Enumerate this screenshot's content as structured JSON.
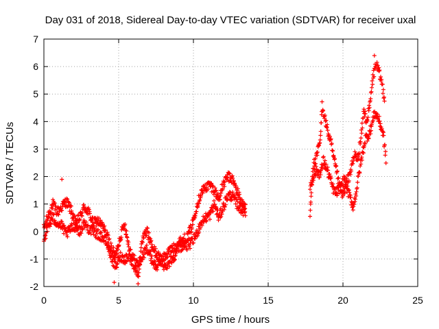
{
  "chart_data": {
    "type": "scatter",
    "title": "Day 031 of 2018, Sidereal Day-to-day VTEC variation (SDTVAR) for receiver uxal",
    "xlabel": "GPS time / hours",
    "ylabel": "SDTVAR / TECUs",
    "xlim": [
      0,
      25
    ],
    "ylim": [
      -2,
      7
    ],
    "x_ticks": [
      "0",
      "5",
      "10",
      "15",
      "20",
      "25"
    ],
    "y_ticks": [
      "-2",
      "-1",
      "0",
      "1",
      "2",
      "3",
      "4",
      "5",
      "6",
      "7"
    ],
    "grid": true,
    "marker": "+",
    "color": "#ff0000",
    "series": [
      {
        "name": "SDTVAR",
        "trend": [
          [
            0.0,
            0.1
          ],
          [
            0.3,
            0.6
          ],
          [
            0.6,
            1.0
          ],
          [
            0.9,
            0.7
          ],
          [
            1.2,
            0.9
          ],
          [
            1.5,
            1.1
          ],
          [
            1.8,
            0.8
          ],
          [
            2.1,
            0.3
          ],
          [
            2.4,
            0.5
          ],
          [
            2.7,
            0.9
          ],
          [
            3.0,
            0.7
          ],
          [
            3.3,
            0.3
          ],
          [
            3.6,
            0.4
          ],
          [
            3.9,
            0.2
          ],
          [
            4.2,
            -0.1
          ],
          [
            4.5,
            -0.6
          ],
          [
            4.8,
            -0.9
          ],
          [
            5.1,
            -0.2
          ],
          [
            5.4,
            0.3
          ],
          [
            5.7,
            -0.6
          ],
          [
            6.0,
            -1.0
          ],
          [
            6.3,
            -1.2
          ],
          [
            6.6,
            -0.9
          ],
          [
            6.9,
            -0.6
          ],
          [
            7.2,
            -1.0
          ],
          [
            7.5,
            -1.3
          ],
          [
            7.8,
            -1.1
          ],
          [
            8.1,
            -0.9
          ],
          [
            8.4,
            -0.7
          ],
          [
            8.7,
            -0.6
          ],
          [
            9.0,
            -0.4
          ],
          [
            9.3,
            -0.3
          ],
          [
            9.6,
            -0.2
          ],
          [
            9.9,
            0.2
          ],
          [
            10.2,
            0.9
          ],
          [
            10.5,
            1.4
          ],
          [
            10.8,
            1.6
          ],
          [
            11.1,
            1.7
          ],
          [
            11.4,
            1.5
          ],
          [
            11.7,
            1.2
          ],
          [
            12.0,
            1.7
          ],
          [
            12.3,
            2.0
          ],
          [
            12.6,
            1.9
          ],
          [
            12.9,
            1.5
          ],
          [
            13.2,
            1.1
          ],
          [
            13.5,
            0.8
          ],
          null,
          [
            17.8,
            0.6
          ],
          [
            17.9,
            1.6
          ],
          [
            18.0,
            2.4
          ],
          [
            18.2,
            2.6
          ],
          [
            18.5,
            3.4
          ],
          [
            18.6,
            4.6
          ],
          [
            18.8,
            4.1
          ],
          [
            19.0,
            3.6
          ],
          [
            19.2,
            3.2
          ],
          [
            19.4,
            2.6
          ],
          [
            19.6,
            2.1
          ],
          [
            19.8,
            1.5
          ],
          [
            20.0,
            1.3
          ],
          [
            20.2,
            1.7
          ],
          [
            20.4,
            2.0
          ],
          [
            20.6,
            2.4
          ],
          [
            20.8,
            2.8
          ],
          [
            21.0,
            2.6
          ],
          [
            21.2,
            3.4
          ],
          [
            21.4,
            4.4
          ],
          [
            21.6,
            4.0
          ],
          [
            21.8,
            4.6
          ],
          [
            22.0,
            5.6
          ],
          [
            22.2,
            6.1
          ],
          [
            22.4,
            5.8
          ],
          [
            22.6,
            5.4
          ],
          [
            22.8,
            4.8
          ]
        ]
      },
      {
        "name": "SDTVAR",
        "trend": [
          [
            0.0,
            -0.3
          ],
          [
            0.3,
            0.2
          ],
          [
            0.6,
            0.5
          ],
          [
            0.9,
            0.3
          ],
          [
            1.2,
            0.2
          ],
          [
            1.5,
            -0.1
          ],
          [
            1.8,
            0.1
          ],
          [
            2.1,
            0.2
          ],
          [
            2.4,
            0.0
          ],
          [
            2.7,
            0.3
          ],
          [
            3.0,
            0.1
          ],
          [
            3.3,
            0.0
          ],
          [
            3.6,
            -0.1
          ],
          [
            3.9,
            -0.2
          ],
          [
            4.2,
            -0.4
          ],
          [
            4.5,
            -0.9
          ],
          [
            4.8,
            -1.3
          ],
          [
            5.1,
            -0.9
          ],
          [
            5.4,
            -1.0
          ],
          [
            5.7,
            -0.9
          ],
          [
            6.0,
            -1.2
          ],
          [
            6.3,
            -1.6
          ],
          [
            6.6,
            -0.3
          ],
          [
            6.9,
            0.0
          ],
          [
            7.2,
            -0.5
          ],
          [
            7.5,
            -0.8
          ],
          [
            7.8,
            -1.0
          ],
          [
            8.1,
            -1.3
          ],
          [
            8.4,
            -1.1
          ],
          [
            8.7,
            -0.9
          ],
          [
            9.0,
            -0.6
          ],
          [
            9.3,
            -0.5
          ],
          [
            9.6,
            -0.5
          ],
          [
            9.9,
            -0.4
          ],
          [
            10.2,
            -0.1
          ],
          [
            10.5,
            0.3
          ],
          [
            10.8,
            0.5
          ],
          [
            11.1,
            0.6
          ],
          [
            11.4,
            1.0
          ],
          [
            11.7,
            0.5
          ],
          [
            12.0,
            0.9
          ],
          [
            12.3,
            1.3
          ],
          [
            12.6,
            1.3
          ],
          [
            12.9,
            1.0
          ],
          [
            13.2,
            0.8
          ],
          [
            13.5,
            0.7
          ],
          null,
          [
            17.8,
            1.6
          ],
          [
            18.0,
            2.0
          ],
          [
            18.2,
            2.2
          ],
          [
            18.5,
            2.1
          ],
          [
            18.7,
            2.6
          ],
          [
            18.9,
            2.3
          ],
          [
            19.1,
            2.0
          ],
          [
            19.3,
            1.6
          ],
          [
            19.5,
            1.4
          ],
          [
            19.7,
            1.5
          ],
          [
            19.9,
            1.7
          ],
          [
            20.1,
            1.9
          ],
          [
            20.3,
            1.5
          ],
          [
            20.5,
            1.2
          ],
          [
            20.7,
            0.9
          ],
          [
            20.9,
            1.5
          ],
          [
            21.1,
            2.2
          ],
          [
            21.3,
            2.8
          ],
          [
            21.5,
            3.4
          ],
          [
            21.7,
            3.5
          ],
          [
            21.9,
            3.8
          ],
          [
            22.1,
            4.3
          ],
          [
            22.3,
            4.2
          ],
          [
            22.5,
            3.9
          ],
          [
            22.7,
            3.5
          ],
          [
            22.9,
            2.5
          ]
        ]
      }
    ],
    "outliers": [
      [
        4.7,
        -1.85
      ],
      [
        6.3,
        -1.9
      ],
      [
        1.2,
        1.9
      ],
      [
        22.1,
        6.4
      ]
    ]
  }
}
